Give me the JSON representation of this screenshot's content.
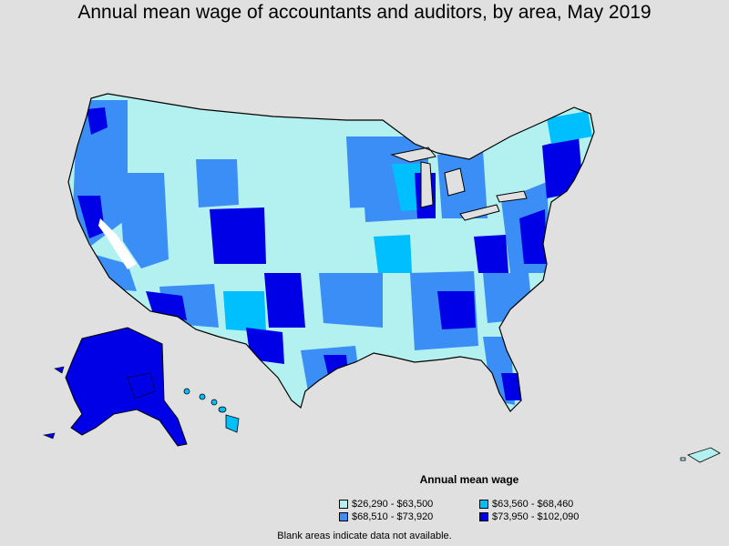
{
  "title": "Annual mean wage of accountants and auditors, by area, May 2019",
  "legend": {
    "title": "Annual mean wage",
    "items": [
      {
        "label": "$26,290 - $63,500",
        "color": "#b3f0f0"
      },
      {
        "label": "$63,560 - $68,460",
        "color": "#00bfff"
      },
      {
        "label": "$68,510 - $73,920",
        "color": "#3a8ef5"
      },
      {
        "label": "$73,950 - $102,090",
        "color": "#0000e6"
      }
    ]
  },
  "footnote": "Blank areas indicate data not available."
}
